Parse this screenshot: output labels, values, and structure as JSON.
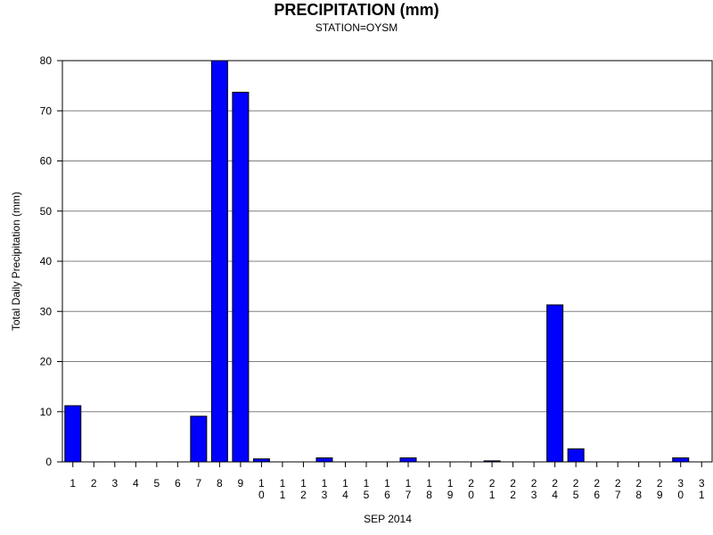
{
  "chart_data": {
    "type": "bar",
    "title": "PRECIPITATION (mm)",
    "subtitle": "STATION=OYSM",
    "xlabel": "SEP 2014",
    "ylabel": "Total Daily Precipitation (mm)",
    "ylim": [
      0,
      80
    ],
    "yticks": [
      "0",
      "10",
      "20",
      "30",
      "40",
      "50",
      "60",
      "70",
      "80"
    ],
    "grid": true,
    "categories": [
      "1",
      "2",
      "3",
      "4",
      "5",
      "6",
      "7",
      "8",
      "9",
      "10",
      "11",
      "12",
      "13",
      "14",
      "15",
      "16",
      "17",
      "18",
      "19",
      "20",
      "21",
      "22",
      "23",
      "24",
      "25",
      "26",
      "27",
      "28",
      "29",
      "30",
      "31"
    ],
    "values": [
      11.2,
      0,
      0,
      0,
      0,
      0,
      9.1,
      80.0,
      73.7,
      0.6,
      0,
      0,
      0.8,
      0,
      0,
      0,
      0.8,
      0,
      0,
      0,
      0.2,
      0,
      0,
      31.3,
      2.6,
      0,
      0,
      0,
      0,
      0.8,
      0
    ],
    "bar_color": "#0000ff",
    "grid_color": "#808080"
  }
}
